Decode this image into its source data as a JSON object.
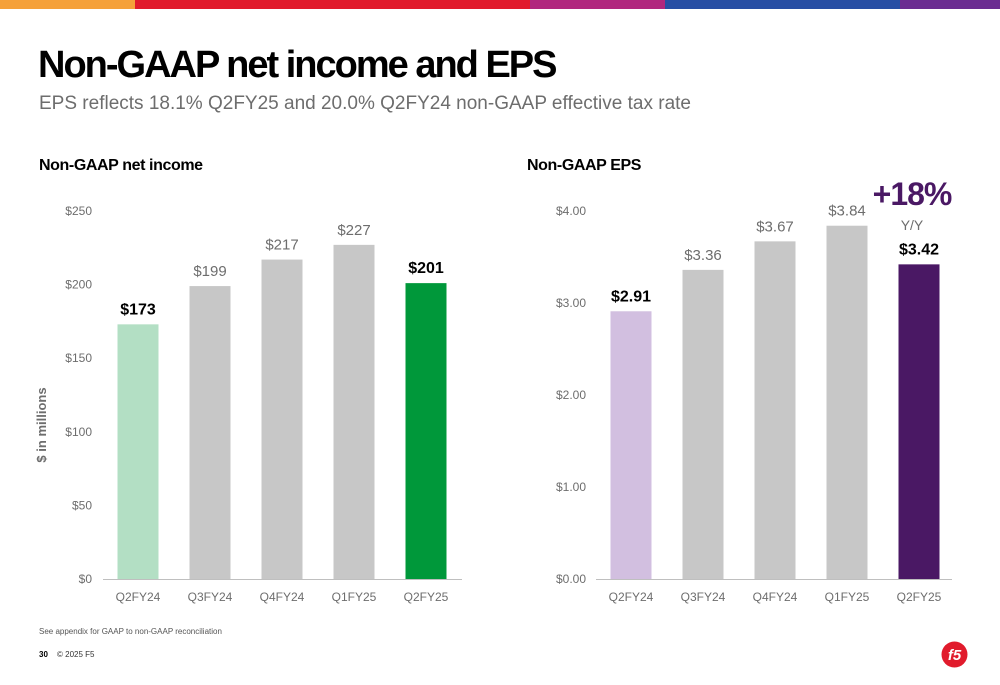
{
  "header": {
    "title": "Non-GAAP net income and EPS",
    "subtitle": "EPS reflects 18.1% Q2FY25 and 20.0% Q2FY24 non-GAAP effective tax rate"
  },
  "brand_band_colors": [
    "#f5a13a",
    "#e11b2c",
    "#b1277e",
    "#274ea4",
    "#6b2c91"
  ],
  "chart_data": [
    {
      "type": "bar",
      "title": "Non-GAAP net income",
      "ylabel": "$ in millions",
      "categories": [
        "Q2FY24",
        "Q3FY24",
        "Q4FY24",
        "Q1FY25",
        "Q2FY25"
      ],
      "values": [
        173,
        199,
        217,
        227,
        201
      ],
      "value_labels": [
        "$173",
        "$199",
        "$217",
        "$227",
        "$201"
      ],
      "bar_colors": [
        "#b3dfc4",
        "#c7c7c7",
        "#c7c7c7",
        "#c7c7c7",
        "#00983a"
      ],
      "bold_labels": [
        true,
        false,
        false,
        false,
        true
      ],
      "yticks": [
        0,
        50,
        100,
        150,
        200,
        250
      ],
      "ytick_labels": [
        "$0",
        "$50",
        "$100",
        "$150",
        "$200",
        "$250"
      ],
      "ylim": [
        0,
        250
      ],
      "grid": false
    },
    {
      "type": "bar",
      "title": "Non-GAAP EPS",
      "categories": [
        "Q2FY24",
        "Q3FY24",
        "Q4FY24",
        "Q1FY25",
        "Q2FY25"
      ],
      "values": [
        2.91,
        3.36,
        3.67,
        3.84,
        3.42
      ],
      "value_labels": [
        "$2.91",
        "$3.36",
        "$3.67",
        "$3.84",
        "$3.42"
      ],
      "bar_colors": [
        "#d2bfe0",
        "#c7c7c7",
        "#c7c7c7",
        "#c7c7c7",
        "#4a1864"
      ],
      "bold_labels": [
        true,
        false,
        false,
        false,
        true
      ],
      "yticks": [
        0,
        1,
        2,
        3,
        4
      ],
      "ytick_labels": [
        "$0.00",
        "$1.00",
        "$2.00",
        "$3.00",
        "$4.00"
      ],
      "ylim": [
        0,
        4
      ],
      "grid": false,
      "annotation": {
        "text": "+18%",
        "subtext": "Y/Y",
        "color": "#4a1864"
      }
    }
  ],
  "footer": {
    "footnote": "See appendix for GAAP to non-GAAP reconciliation",
    "page_number": "30",
    "copyright": "© 2025 F5",
    "logo_text": "f5",
    "logo_color": "#e11b2c"
  }
}
